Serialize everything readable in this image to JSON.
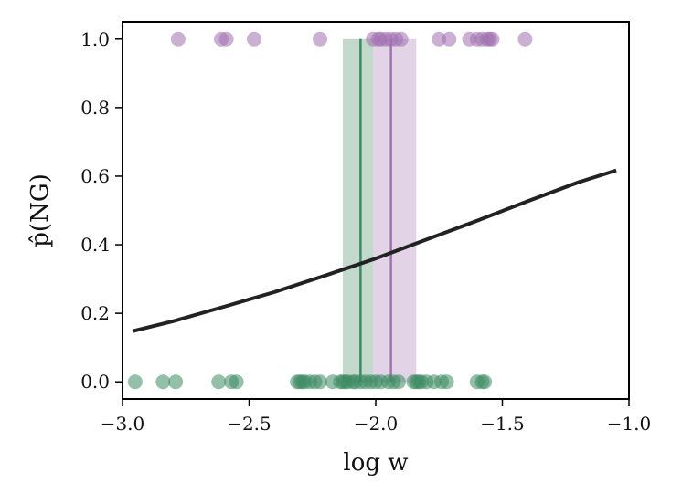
{
  "chart_data": {
    "type": "scatter",
    "xlabel": "log w",
    "ylabel": "p̂(NG)",
    "xlim": [
      -3.0,
      -1.0
    ],
    "ylim": [
      -0.05,
      1.05
    ],
    "x_ticks": [
      -3.0,
      -2.5,
      -2.0,
      -1.5,
      -1.0
    ],
    "x_tick_labels": [
      "−3.0",
      "−2.5",
      "−2.0",
      "−1.5",
      "−1.0"
    ],
    "y_ticks": [
      0.0,
      0.2,
      0.4,
      0.6,
      0.8,
      1.0
    ],
    "y_tick_labels": [
      "0.0",
      "0.2",
      "0.4",
      "0.6",
      "0.8",
      "1.0"
    ],
    "grid": false,
    "colors": {
      "ng": "#a070b0",
      "g": "#3d8a63",
      "curve": "#222222",
      "ng_band": "#b996c4",
      "g_band": "#6ea485"
    },
    "series": [
      {
        "color_key": "ng",
        "y": 1.0,
        "x": [
          -2.78,
          -2.61,
          -2.59,
          -2.48,
          -2.22,
          -2.01,
          -1.99,
          -1.98,
          -1.96,
          -1.94,
          -1.92,
          -1.9,
          -1.75,
          -1.71,
          -1.63,
          -1.6,
          -1.58,
          -1.56,
          -1.55,
          -1.54,
          -1.41
        ]
      },
      {
        "color_key": "g",
        "y": 0.0,
        "x": [
          -2.95,
          -2.84,
          -2.79,
          -2.62,
          -2.57,
          -2.55,
          -2.31,
          -2.3,
          -2.29,
          -2.28,
          -2.26,
          -2.24,
          -2.22,
          -2.17,
          -2.14,
          -2.13,
          -2.12,
          -2.11,
          -2.09,
          -2.08,
          -2.06,
          -2.04,
          -2.02,
          -2.0,
          -1.98,
          -1.95,
          -1.93,
          -1.91,
          -1.85,
          -1.84,
          -1.83,
          -1.82,
          -1.8,
          -1.77,
          -1.74,
          -1.72,
          -1.6,
          -1.58,
          -1.57
        ]
      }
    ],
    "curve": {
      "x": [
        -2.96,
        -2.8,
        -2.6,
        -2.4,
        -2.2,
        -2.0,
        -1.8,
        -1.6,
        -1.4,
        -1.2,
        -1.05
      ],
      "y": [
        0.148,
        0.177,
        0.219,
        0.262,
        0.31,
        0.36,
        0.415,
        0.47,
        0.527,
        0.582,
        0.617
      ]
    },
    "vlines": [
      {
        "color_key": "g",
        "x": -2.06,
        "band": [
          -2.13,
          -2.01
        ]
      },
      {
        "color_key": "ng",
        "x": -1.94,
        "band": [
          -2.01,
          -1.84
        ]
      }
    ]
  }
}
